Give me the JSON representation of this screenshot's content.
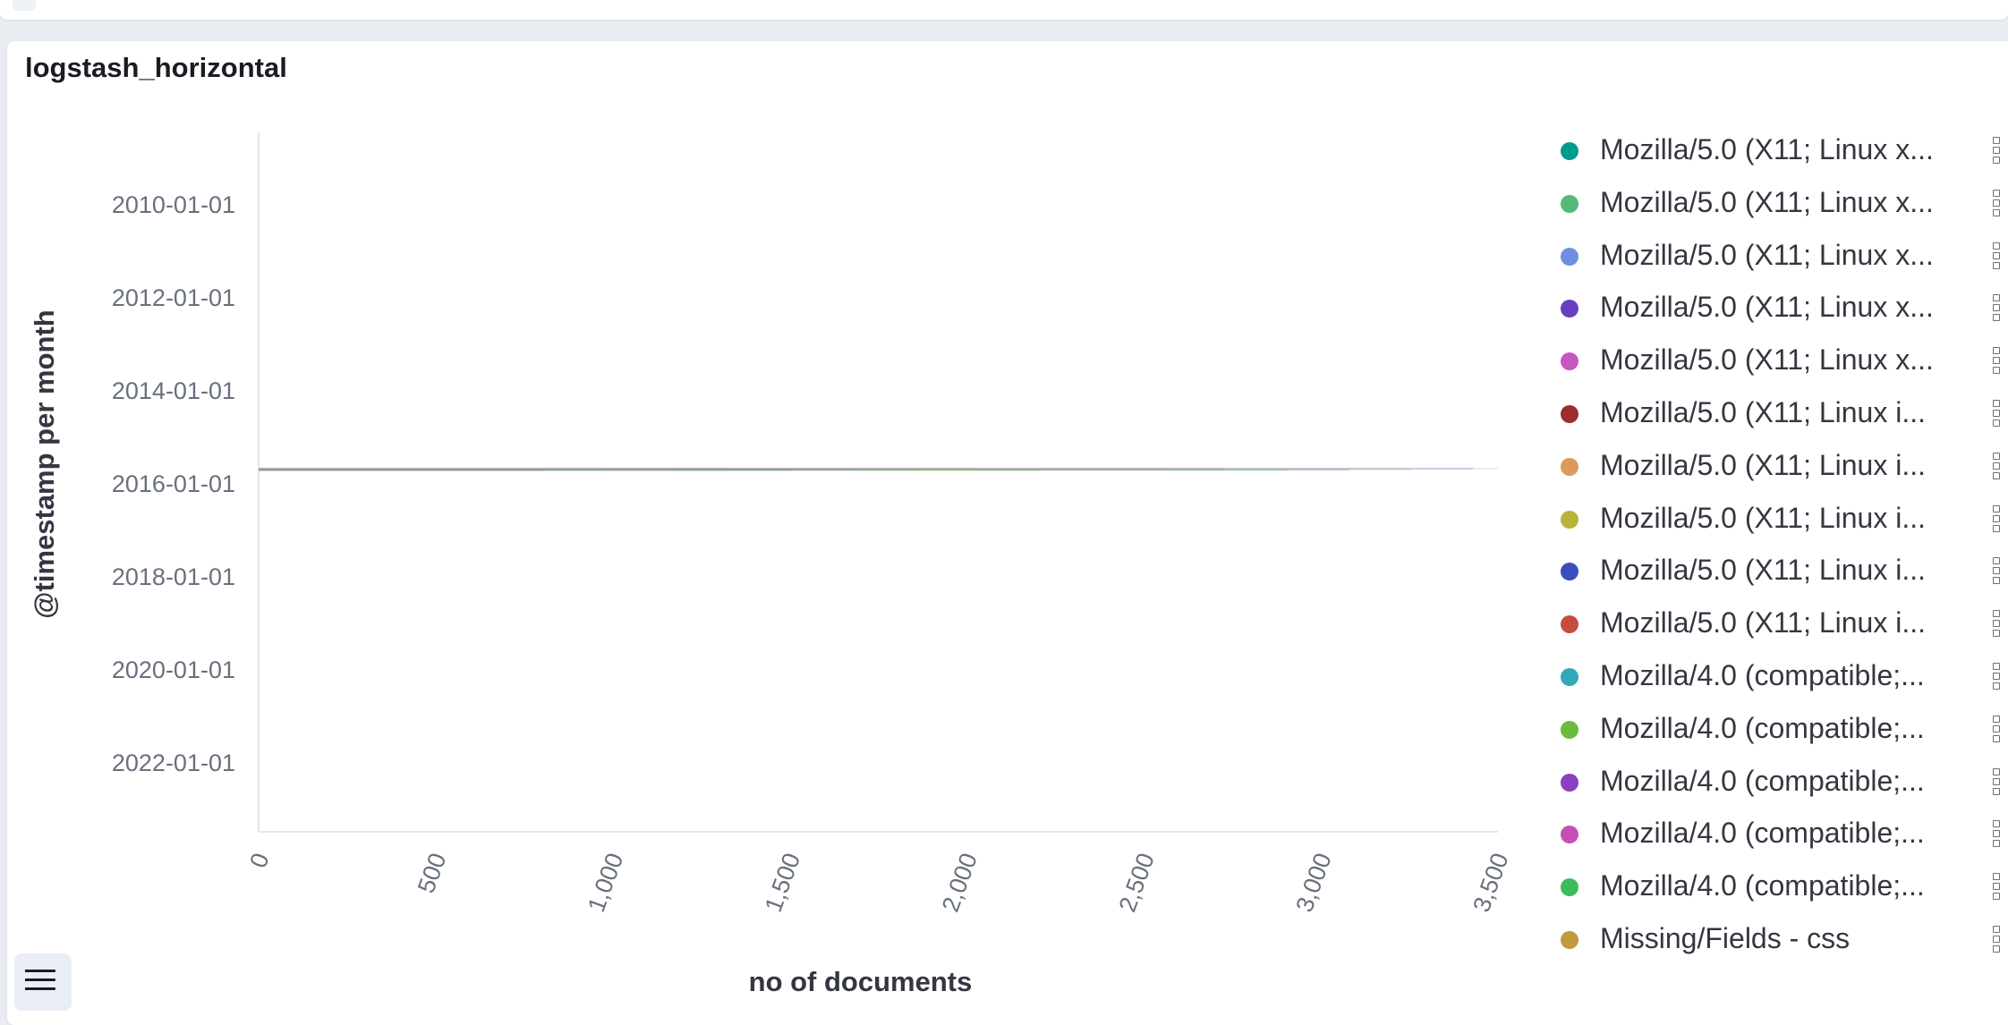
{
  "panel": {
    "title": "logstash_horizontal"
  },
  "chart_data": {
    "type": "line",
    "orientation": "horizontal",
    "title": "logstash_horizontal",
    "xlabel": "no of documents",
    "ylabel": "@timestamp per month",
    "xlim": [
      0,
      3500
    ],
    "x_ticks": [
      "0",
      "500",
      "1,000",
      "1,500",
      "2,000",
      "2,500",
      "3,000",
      "3,500"
    ],
    "y_ticks": [
      "2010-01-01",
      "2012-01-01",
      "2014-01-01",
      "2016-01-01",
      "2018-01-01",
      "2020-01-01",
      "2022-01-01"
    ],
    "legend_position": "right",
    "grid": false,
    "series": [
      {
        "name": "Mozilla/5.0 (X11; Linux x...",
        "color": "#009b8f"
      },
      {
        "name": "Mozilla/5.0 (X11; Linux x...",
        "color": "#54b97a"
      },
      {
        "name": "Mozilla/5.0 (X11; Linux x...",
        "color": "#6e8fdf"
      },
      {
        "name": "Mozilla/5.0 (X11; Linux x...",
        "color": "#6a3fbf"
      },
      {
        "name": "Mozilla/5.0 (X11; Linux x...",
        "color": "#c856c2"
      },
      {
        "name": "Mozilla/5.0 (X11; Linux i...",
        "color": "#9e2d2d"
      },
      {
        "name": "Mozilla/5.0 (X11; Linux i...",
        "color": "#dd9a5a"
      },
      {
        "name": "Mozilla/5.0 (X11; Linux i...",
        "color": "#b8b23a"
      },
      {
        "name": "Mozilla/5.0 (X11; Linux i...",
        "color": "#3c4ebd"
      },
      {
        "name": "Mozilla/5.0 (X11; Linux i...",
        "color": "#c84c3d"
      },
      {
        "name": "Mozilla/4.0 (compatible;...",
        "color": "#33a9b8"
      },
      {
        "name": "Mozilla/4.0 (compatible;...",
        "color": "#6dbb3c"
      },
      {
        "name": "Mozilla/4.0 (compatible;...",
        "color": "#8b3fc3"
      },
      {
        "name": "Mozilla/4.0 (compatible;...",
        "color": "#c64fb6"
      },
      {
        "name": "Mozilla/4.0 (compatible;...",
        "color": "#3ebc5c"
      },
      {
        "name": "Missing/Fields - css",
        "color": "#c09a3b"
      }
    ]
  }
}
